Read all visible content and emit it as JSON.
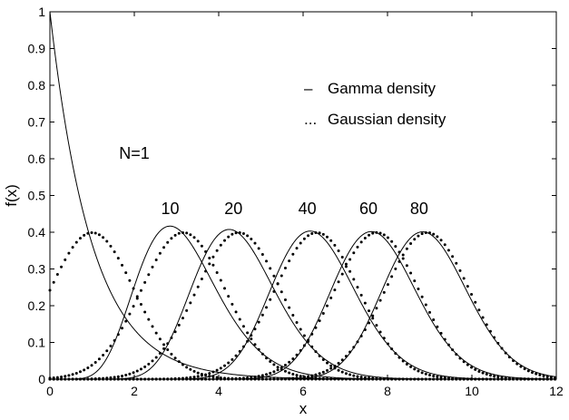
{
  "chart_data": {
    "type": "line",
    "title": "",
    "xlabel": "x",
    "ylabel": "f(x)",
    "xlim": [
      0,
      12
    ],
    "ylim": [
      0,
      1
    ],
    "xticks": [
      "0",
      "2",
      "4",
      "6",
      "8",
      "10",
      "12"
    ],
    "yticks": [
      "0",
      "0.1",
      "0.2",
      "0.3",
      "0.4",
      "0.5",
      "0.6",
      "0.7",
      "0.8",
      "0.9",
      "1"
    ],
    "grid": false,
    "legend": {
      "placement": "top-right",
      "entries": [
        {
          "marker": "–",
          "label": "Gamma density",
          "style": "solid"
        },
        {
          "marker": "...",
          "label": "Gaussian density",
          "style": "dotted"
        }
      ]
    },
    "annotations": [
      {
        "text": "N=1",
        "x": 2.0,
        "y": 0.6
      },
      {
        "text": "10",
        "x": 2.85,
        "y": 0.45
      },
      {
        "text": "20",
        "x": 4.35,
        "y": 0.45
      },
      {
        "text": "40",
        "x": 6.1,
        "y": 0.45
      },
      {
        "text": "60",
        "x": 7.55,
        "y": 0.45
      },
      {
        "text": "80",
        "x": 8.75,
        "y": 0.45
      }
    ],
    "series": [
      {
        "style": "solid",
        "N": 1,
        "peak_x": 0.0,
        "peak_y": 1.0
      },
      {
        "style": "dotted",
        "N": 1,
        "peak_x": 1.0,
        "peak_y": 0.4
      },
      {
        "style": "solid",
        "N": 10,
        "peak_x": 2.85,
        "peak_y": 0.415
      },
      {
        "style": "dotted",
        "N": 10,
        "peak_x": 3.15,
        "peak_y": 0.4
      },
      {
        "style": "solid",
        "N": 20,
        "peak_x": 4.35,
        "peak_y": 0.405
      },
      {
        "style": "dotted",
        "N": 20,
        "peak_x": 4.5,
        "peak_y": 0.4
      },
      {
        "style": "solid",
        "N": 40,
        "peak_x": 6.2,
        "peak_y": 0.402
      },
      {
        "style": "dotted",
        "N": 40,
        "peak_x": 6.3,
        "peak_y": 0.4
      },
      {
        "style": "solid",
        "N": 60,
        "peak_x": 7.65,
        "peak_y": 0.401
      },
      {
        "style": "dotted",
        "N": 60,
        "peak_x": 7.72,
        "peak_y": 0.4
      },
      {
        "style": "solid",
        "N": 80,
        "peak_x": 8.85,
        "peak_y": 0.4
      },
      {
        "style": "dotted",
        "N": 80,
        "peak_x": 8.92,
        "peak_y": 0.4
      }
    ]
  }
}
